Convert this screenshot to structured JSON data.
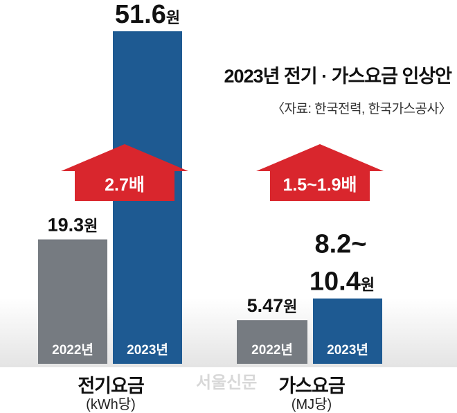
{
  "title": "2023년 전기 · 가스요금 인상안",
  "source": "〈자료: 한국전력, 한국가스공사〉",
  "watermark": "서울신문",
  "colors": {
    "bar_2022": "#767b81",
    "bar_2023": "#1e5a92",
    "arrow": "#d9262d",
    "arrow_label": "#ffffff"
  },
  "chart_data": [
    {
      "type": "bar",
      "category": "전기요금",
      "unit": "(kWh당)",
      "categories": [
        "2022년",
        "2023년"
      ],
      "values": [
        19.3,
        51.6
      ],
      "value_labels": [
        {
          "num": "19.3",
          "suffix": "원"
        },
        {
          "num": "51.6",
          "suffix": "원"
        }
      ],
      "increase_label": "2.7배"
    },
    {
      "type": "bar",
      "category": "가스요금",
      "unit": "(MJ당)",
      "categories": [
        "2022년",
        "2023년"
      ],
      "values": [
        5.47,
        8.2
      ],
      "values_range_max": 10.4,
      "value_labels": [
        {
          "num": "5.47",
          "suffix": "원"
        },
        {
          "num": "8.2~",
          "num2": "10.4",
          "suffix": "원"
        }
      ],
      "increase_label": "1.5~1.9배"
    }
  ]
}
